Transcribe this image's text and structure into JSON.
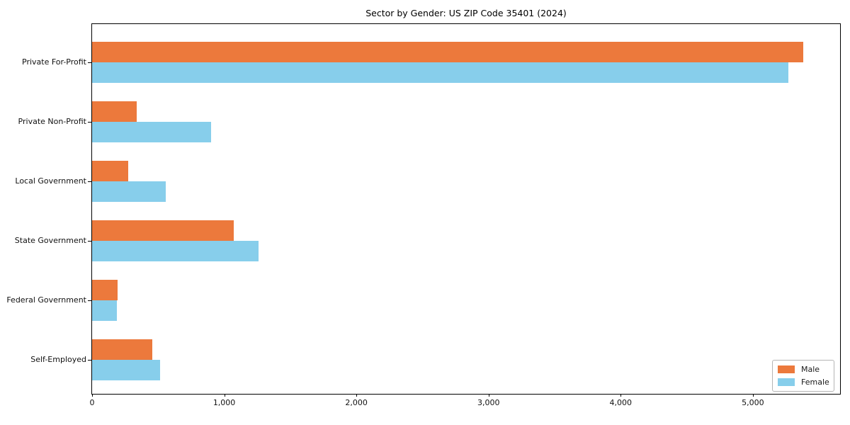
{
  "title": "Sector by Gender: US ZIP Code 35401 (2024)",
  "chart_data": {
    "type": "bar",
    "orientation": "horizontal",
    "title": "Sector by Gender: US ZIP Code 35401 (2024)",
    "categories": [
      "Private For-Profit",
      "Private Non-Profit",
      "Local Government",
      "State Government",
      "Federal Government",
      "Self-Employed"
    ],
    "series": [
      {
        "name": "Male",
        "color": "#ec793c",
        "values": [
          5380,
          336,
          273,
          1072,
          191,
          457
        ]
      },
      {
        "name": "Female",
        "color": "#87ceeb",
        "values": [
          5268,
          900,
          557,
          1259,
          188,
          514
        ]
      }
    ],
    "xlabel": "",
    "ylabel": "",
    "xlim": [
      0,
      5660
    ],
    "x_ticks": [
      0,
      1000,
      2000,
      3000,
      4000,
      5000
    ],
    "x_tick_labels": [
      "0",
      "1,000",
      "2,000",
      "3,000",
      "4,000",
      "5,000"
    ],
    "grid": false,
    "legend_position": "lower right",
    "plot_border_color": "#000000",
    "background_color": "#ffffff"
  }
}
